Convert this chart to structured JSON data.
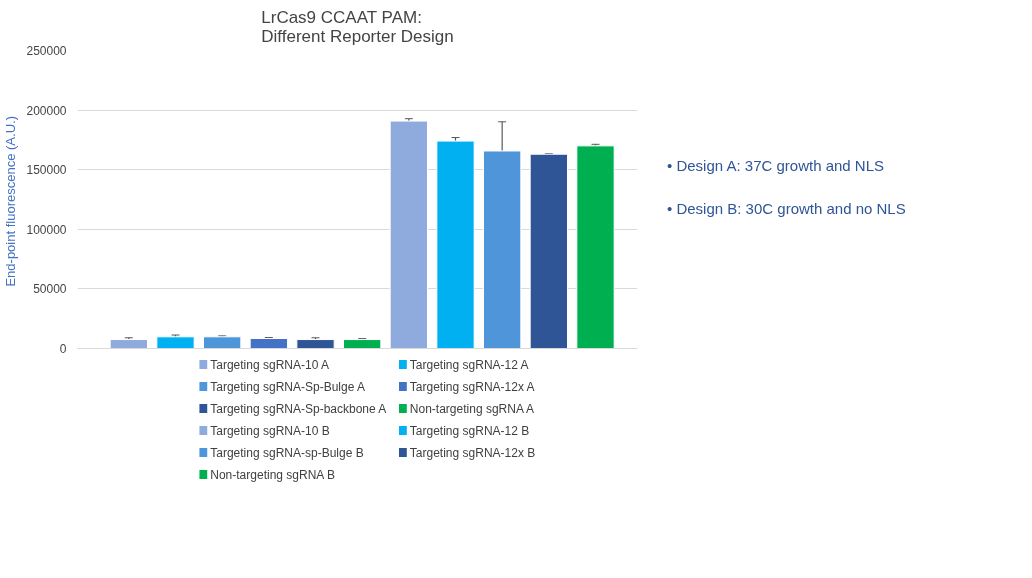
{
  "chart_data": {
    "type": "bar",
    "title": "LrCas9 CCAAT PAM:\nDifferent Reporter Design",
    "ylabel": "End-point  fluorescence (A.U.)",
    "categories": [
      null,
      null,
      null,
      null,
      null,
      null,
      null,
      null,
      null,
      null,
      null
    ],
    "series": [
      {
        "name": "Targeting sgRNA-10 A",
        "color": "#8faadc",
        "values": [
          7500,
          null,
          null,
          null,
          null,
          null,
          null,
          null,
          null,
          null,
          null
        ],
        "errors": [
          1500,
          null,
          null,
          null,
          null,
          null,
          null,
          null,
          null,
          null,
          null
        ]
      },
      {
        "name": "Targeting sgRNA-12 A",
        "color": "#00b0f0",
        "values": [
          null,
          9800,
          null,
          null,
          null,
          null,
          null,
          null,
          null,
          null,
          null
        ],
        "errors": [
          null,
          1500,
          null,
          null,
          null,
          null,
          null,
          null,
          null,
          null,
          null
        ]
      },
      {
        "name": "Targeting sgRNA-Sp-Bulge A",
        "color": "#4e95d9",
        "values": [
          null,
          null,
          9800,
          null,
          null,
          null,
          null,
          null,
          null,
          null,
          null
        ],
        "errors": [
          null,
          null,
          800,
          null,
          null,
          null,
          null,
          null,
          null,
          null,
          null
        ]
      },
      {
        "name": "Targeting sgRNA-12x A",
        "color": "#4472c4",
        "values": [
          null,
          null,
          null,
          8400,
          null,
          null,
          null,
          null,
          null,
          null,
          null
        ],
        "errors": [
          null,
          null,
          null,
          800,
          null,
          null,
          null,
          null,
          null,
          null,
          null
        ]
      },
      {
        "name": "Targeting sgRNA-Sp-backbone A",
        "color": "#2f5597",
        "values": [
          null,
          null,
          null,
          null,
          7500,
          null,
          null,
          null,
          null,
          null,
          null
        ],
        "errors": [
          null,
          null,
          null,
          null,
          1500,
          null,
          null,
          null,
          null,
          null,
          null
        ]
      },
      {
        "name": "Non-targeting sgRNA A",
        "color": "#00b050",
        "values": [
          null,
          null,
          null,
          null,
          null,
          7500,
          null,
          null,
          null,
          null,
          null
        ],
        "errors": [
          null,
          null,
          null,
          null,
          null,
          800,
          null,
          null,
          null,
          null,
          null
        ]
      },
      {
        "name": " Targeting sgRNA-10 B",
        "color": "#8faadc",
        "values": [
          null,
          null,
          null,
          null,
          null,
          null,
          190800,
          null,
          null,
          null,
          null
        ],
        "errors": [
          null,
          null,
          null,
          null,
          null,
          null,
          2000,
          null,
          null,
          null,
          null
        ]
      },
      {
        "name": "Targeting sgRNA-12 B",
        "color": "#00b0f0",
        "values": [
          null,
          null,
          null,
          null,
          null,
          null,
          null,
          174000,
          null,
          null,
          null
        ],
        "errors": [
          null,
          null,
          null,
          null,
          null,
          null,
          null,
          3000,
          null,
          null,
          null
        ]
      },
      {
        "name": "Targeting sgRNA-sp-Bulge B",
        "color": "#4e95d9",
        "values": [
          null,
          null,
          null,
          null,
          null,
          null,
          null,
          null,
          165700,
          null,
          null
        ],
        "errors": [
          null,
          null,
          null,
          null,
          null,
          null,
          null,
          null,
          24500,
          null,
          null
        ]
      },
      {
        "name": "Targeting sgRNA-12x B",
        "color": "#2f5597",
        "values": [
          null,
          null,
          null,
          null,
          null,
          null,
          null,
          null,
          null,
          163000,
          null
        ],
        "errors": [
          null,
          null,
          null,
          null,
          null,
          null,
          null,
          null,
          null,
          500,
          null
        ]
      },
      {
        "name": "Non-targeting sgRNA B",
        "color": "#00b050",
        "values": [
          null,
          null,
          null,
          null,
          null,
          null,
          null,
          null,
          null,
          null,
          170000
        ],
        "errors": [
          null,
          null,
          null,
          null,
          null,
          null,
          null,
          null,
          null,
          null,
          1300
        ]
      }
    ],
    "ylim": [
      0,
      250000
    ],
    "yticks": [
      0,
      50000,
      100000,
      150000,
      200000,
      250000
    ],
    "grid": "y",
    "legend": "bottom",
    "tick_labels": "y",
    "annotations": [
      "•  Design A: 37C growth and NLS",
      "•  Design B: 30C growth and no NLS"
    ]
  }
}
